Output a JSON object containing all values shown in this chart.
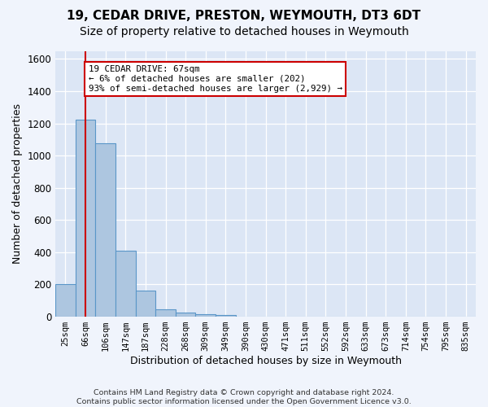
{
  "title": "19, CEDAR DRIVE, PRESTON, WEYMOUTH, DT3 6DT",
  "subtitle": "Size of property relative to detached houses in Weymouth",
  "xlabel": "Distribution of detached houses by size in Weymouth",
  "ylabel": "Number of detached properties",
  "categories": [
    "25sqm",
    "66sqm",
    "106sqm",
    "147sqm",
    "187sqm",
    "228sqm",
    "268sqm",
    "309sqm",
    "349sqm",
    "390sqm",
    "430sqm",
    "471sqm",
    "511sqm",
    "552sqm",
    "592sqm",
    "633sqm",
    "673sqm",
    "714sqm",
    "754sqm",
    "795sqm",
    "835sqm"
  ],
  "values": [
    205,
    1225,
    1075,
    410,
    160,
    45,
    25,
    15,
    13,
    0,
    0,
    0,
    0,
    0,
    0,
    0,
    0,
    0,
    0,
    0,
    0
  ],
  "bar_color": "#adc6e0",
  "bar_edge_color": "#5a96c8",
  "vline_x": 1,
  "vline_color": "#cc0000",
  "annotation_text": "19 CEDAR DRIVE: 67sqm\n← 6% of detached houses are smaller (202)\n93% of semi-detached houses are larger (2,929) →",
  "annotation_box_color": "#ffffff",
  "annotation_box_edge": "#cc0000",
  "ylim": [
    0,
    1650
  ],
  "yticks": [
    0,
    200,
    400,
    600,
    800,
    1000,
    1200,
    1400,
    1600
  ],
  "bg_color": "#f0f4fc",
  "plot_bg_color": "#dce6f5",
  "footer": "Contains HM Land Registry data © Crown copyright and database right 2024.\nContains public sector information licensed under the Open Government Licence v3.0.",
  "title_fontsize": 11,
  "subtitle_fontsize": 10,
  "xlabel_fontsize": 9,
  "ylabel_fontsize": 9
}
